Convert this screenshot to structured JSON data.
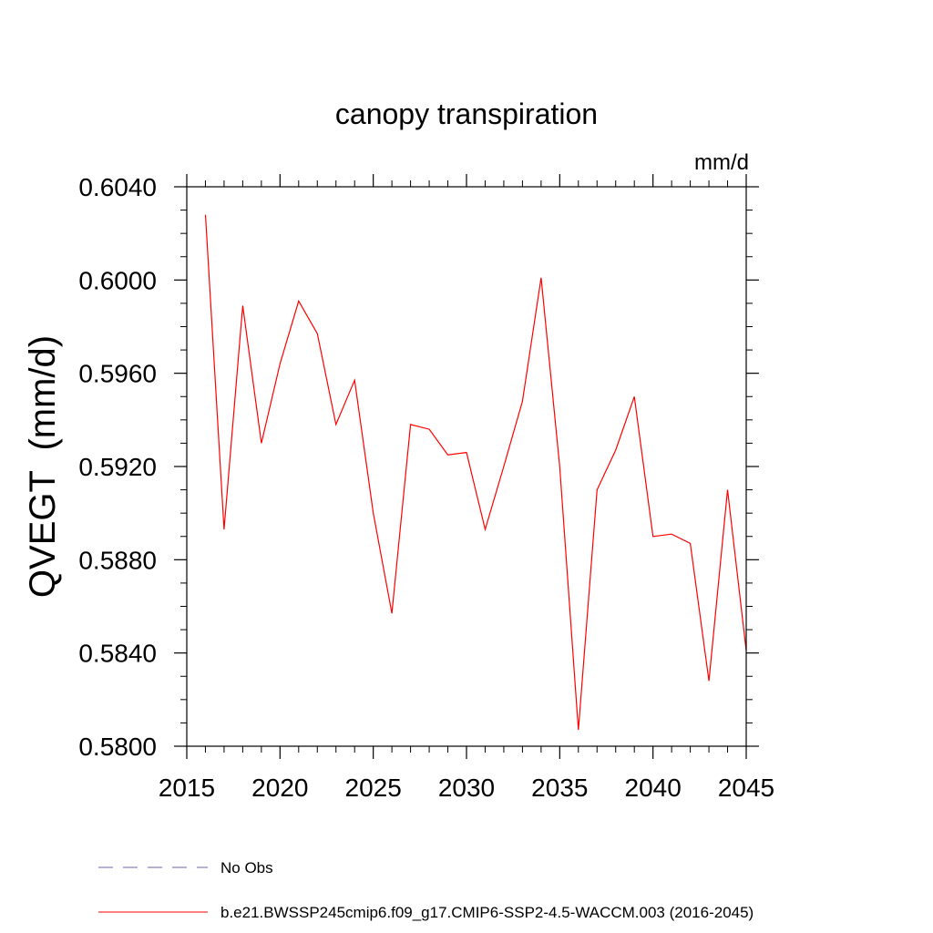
{
  "chart_data": {
    "type": "line",
    "title": "canopy transpiration",
    "units": "mm/d",
    "ylabel": "QVEGT  (mm/d)",
    "xlabel": "",
    "xlim": [
      2015,
      2045
    ],
    "ylim": [
      0.58,
      0.604
    ],
    "x_ticks": [
      2015,
      2020,
      2025,
      2030,
      2035,
      2040,
      2045
    ],
    "x_tick_labels": [
      "2015",
      "2020",
      "2025",
      "2030",
      "2035",
      "2040",
      "2045"
    ],
    "y_ticks": [
      0.58,
      0.584,
      0.588,
      0.592,
      0.596,
      0.6,
      0.604
    ],
    "y_tick_labels": [
      "0.5800",
      "0.5840",
      "0.5880",
      "0.5920",
      "0.5960",
      "0.6000",
      "0.6040"
    ],
    "grid": false,
    "legend_position": "bottom",
    "series": [
      {
        "name": "b.e21.BWSSP245cmip6.f09_g17.CMIP6-SSP2-4.5-WACCM.003 (2016-2045)",
        "color": "#ff0000",
        "style": "solid",
        "x": [
          2016,
          2017,
          2018,
          2019,
          2020,
          2021,
          2022,
          2023,
          2024,
          2025,
          2026,
          2027,
          2028,
          2029,
          2030,
          2031,
          2032,
          2033,
          2034,
          2035,
          2036,
          2037,
          2038,
          2039,
          2040,
          2041,
          2042,
          2043,
          2044,
          2045
        ],
        "values": [
          0.6028,
          0.5893,
          0.5989,
          0.593,
          0.5964,
          0.5991,
          0.5977,
          0.5938,
          0.5957,
          0.59,
          0.5857,
          0.5938,
          0.5936,
          0.5925,
          0.5926,
          0.5893,
          0.592,
          0.5948,
          0.6001,
          0.592,
          0.5807,
          0.591,
          0.5927,
          0.595,
          0.589,
          0.5891,
          0.5887,
          0.5828,
          0.591,
          0.5841
        ]
      }
    ],
    "legend": [
      {
        "label": "No Obs",
        "color": "#7060b0",
        "style": "dashed"
      },
      {
        "label": "b.e21.BWSSP245cmip6.f09_g17.CMIP6-SSP2-4.5-WACCM.003 (2016-2045)",
        "color": "#ff0000",
        "style": "solid"
      }
    ]
  }
}
